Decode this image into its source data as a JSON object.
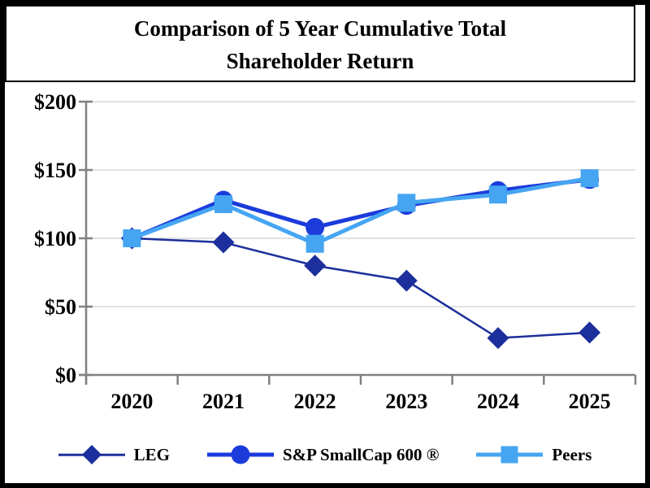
{
  "title": {
    "text": "Comparison of 5 Year Cumulative Total Shareholder Return"
  },
  "chart_data": {
    "type": "line",
    "title": "Comparison of 5 Year Cumulative Total Shareholder Return",
    "title_lines": [
      "Comparison of 5 Year Cumulative Total",
      "Shareholder Return"
    ],
    "categories": [
      "2020",
      "2021",
      "2022",
      "2023",
      "2024",
      "2025"
    ],
    "series": [
      {
        "name": "LEG",
        "values": [
          100,
          97,
          80,
          69,
          27,
          31
        ],
        "color": "#1c2f9c",
        "marker": "diamond",
        "line_width": 2.5
      },
      {
        "name": "S&P SmallCap 600 ®",
        "values": [
          100,
          128,
          108,
          124,
          135,
          143
        ],
        "color": "#1b3bdb",
        "marker": "circle",
        "line_width": 5
      },
      {
        "name": "Peers",
        "values": [
          100,
          125,
          96,
          126,
          132,
          144
        ],
        "color": "#45a5f2",
        "marker": "square",
        "line_width": 5
      }
    ],
    "xlabel": "",
    "ylabel": "",
    "ylim": [
      0,
      200
    ],
    "yticks": [
      {
        "value": 0,
        "label": "$0"
      },
      {
        "value": 50,
        "label": "$50"
      },
      {
        "value": 100,
        "label": "$100"
      },
      {
        "value": 150,
        "label": "$150"
      },
      {
        "value": 200,
        "label": "$200"
      }
    ],
    "grid": "horizontal",
    "legend_position": "bottom",
    "axis_color": "#808080",
    "gridline_color": "#d9d9d9",
    "label_color": "#000000"
  }
}
